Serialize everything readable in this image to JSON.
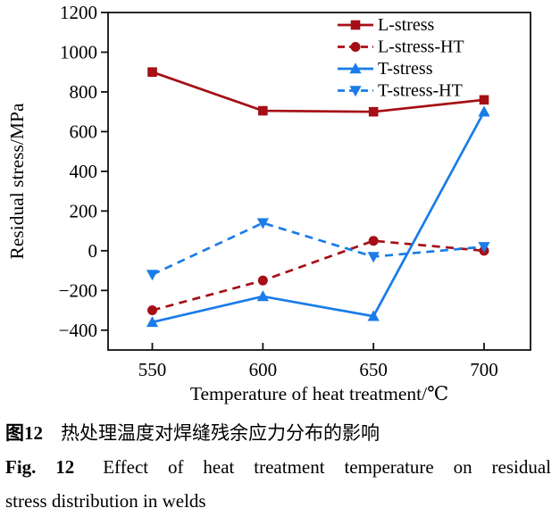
{
  "figure": {
    "caption_zh": {
      "label": "图12",
      "text": "热处理温度对焊缝残余应力分布的影响"
    },
    "caption_en": {
      "label": "Fig. 12",
      "line1": "Effect of heat treatment temperature on residual",
      "line2": "stress distribution in welds"
    }
  },
  "chart_data": {
    "type": "line",
    "title": "",
    "xlabel": "Temperature of heat treatment/℃",
    "ylabel": "Residual stress/MPa",
    "x": [
      550,
      600,
      650,
      700
    ],
    "series": [
      {
        "name": "L-stress",
        "values": [
          900,
          705,
          700,
          760
        ],
        "color": "#A50F15",
        "line_style": "solid",
        "marker": "square"
      },
      {
        "name": "L-stress-HT",
        "values": [
          -300,
          -150,
          50,
          0
        ],
        "color": "#A50F15",
        "line_style": "dashed",
        "marker": "circle"
      },
      {
        "name": "T-stress",
        "values": [
          -360,
          -230,
          -330,
          700
        ],
        "color": "#1A7CE8",
        "line_style": "solid",
        "marker": "triangle-up"
      },
      {
        "name": "T-stress-HT",
        "values": [
          -120,
          140,
          -30,
          20
        ],
        "color": "#1A7CE8",
        "line_style": "dashed",
        "marker": "triangle-down"
      }
    ],
    "x_ticks": [
      550,
      600,
      650,
      700
    ],
    "y_ticks": [
      1200,
      1000,
      800,
      600,
      400,
      200,
      0,
      -200,
      -400
    ],
    "xlim": [
      530,
      721
    ],
    "ylim": [
      -500,
      1200
    ],
    "grid": false,
    "legend_position": "top-right",
    "axis_color": "#111111"
  }
}
